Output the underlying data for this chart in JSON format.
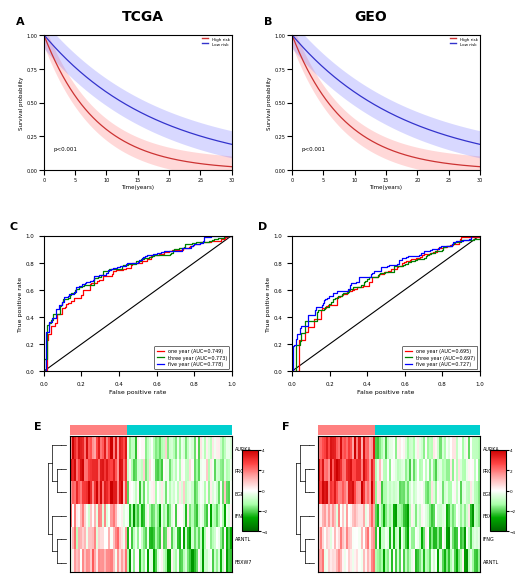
{
  "title_left": "TCGA",
  "title_right": "GEO",
  "km_pvalue": "p<0.001",
  "roc_C": {
    "one_year_auc": 0.749,
    "three_year_auc": 0.773,
    "five_year_auc": 0.778
  },
  "roc_D": {
    "one_year_auc": 0.695,
    "three_year_auc": 0.697,
    "five_year_auc": 0.727
  },
  "heatmap_genes_E": [
    "AURKA",
    "PROM2",
    "EGFR",
    "IFNG",
    "ARNTL",
    "FBXW7"
  ],
  "heatmap_genes_F": [
    "AURKA",
    "PROM2",
    "EGFR",
    "FBXW7",
    "IFNG",
    "ARNTL"
  ],
  "km_high_color": "#CC3333",
  "km_low_color": "#3333CC",
  "km_high_fill": "#FF8080",
  "km_low_fill": "#8080FF",
  "roc_one_color": "red",
  "roc_three_color": "green",
  "roc_five_color": "blue",
  "heatmap_cmap_colors": [
    "#006600",
    "#00AA00",
    "#AAFFAA",
    "white",
    "#FFAAAA",
    "#FF4444",
    "#CC0000"
  ],
  "type_bar_colors": [
    "#FF8080",
    "#00CFCF"
  ]
}
